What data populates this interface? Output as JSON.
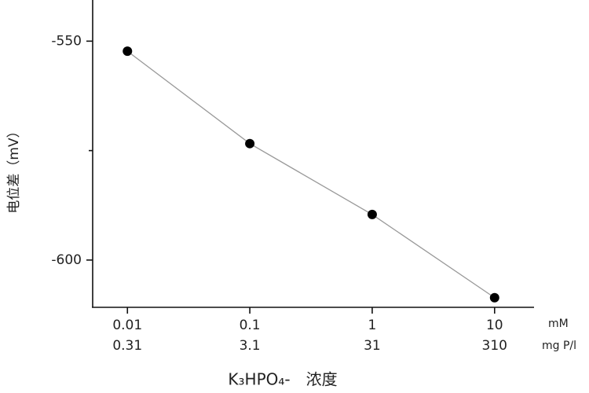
{
  "chart_data": {
    "type": "line",
    "y_label": "电位差（mV）",
    "x_label": "K₃HPO₄-　浓度",
    "x_unit": "mM",
    "x2_unit": "mg P/l",
    "x": [
      0.01,
      0.1,
      1,
      10
    ],
    "series": [
      {
        "values": [
          -552.3,
          -573.4,
          -589.6,
          -608.6
        ],
        "color": "#999999",
        "marker_color": "#000000"
      }
    ],
    "xscale": "log",
    "xlim": [
      0.0052,
      21
    ],
    "xticks": [
      0.01,
      0.1,
      1,
      10
    ],
    "x2lim": [
      0.1612,
      651
    ],
    "x2ticks": [
      0.31,
      3.1,
      31,
      310
    ],
    "ylim": [
      -610.8,
      -540.6
    ],
    "yticks": [
      -550,
      -600
    ],
    "yminorticks": [
      -575
    ]
  }
}
